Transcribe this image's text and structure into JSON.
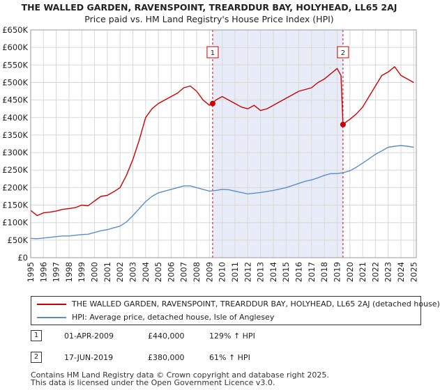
{
  "title": "THE WALLED GARDEN, RAVENSPOINT, TREARDDUR BAY, HOLYHEAD, LL65 2AJ",
  "subtitle": "Price paid vs. HM Land Registry's House Price Index (HPI)",
  "chart_data": {
    "type": "line",
    "xlim": [
      1995,
      2025.2
    ],
    "ylim": [
      0,
      650000
    ],
    "y_ticks": [
      0,
      50000,
      100000,
      150000,
      200000,
      250000,
      300000,
      350000,
      400000,
      450000,
      500000,
      550000,
      600000,
      650000
    ],
    "y_tick_labels": [
      "£0",
      "£50K",
      "£100K",
      "£150K",
      "£200K",
      "£250K",
      "£300K",
      "£350K",
      "£400K",
      "£450K",
      "£500K",
      "£550K",
      "£600K",
      "£650K"
    ],
    "x_ticks": [
      "1995",
      "1996",
      "1997",
      "1998",
      "1999",
      "2000",
      "2001",
      "2002",
      "2003",
      "2004",
      "2005",
      "2006",
      "2007",
      "2008",
      "2009",
      "2010",
      "2011",
      "2012",
      "2013",
      "2014",
      "2015",
      "2016",
      "2017",
      "2018",
      "2019",
      "2020",
      "2021",
      "2022",
      "2023",
      "2024",
      "2025"
    ],
    "grid": true,
    "shaded_region": [
      2009.25,
      2019.46
    ],
    "series": [
      {
        "name": "THE WALLED GARDEN, RAVENSPOINT, TREARDDUR BAY, HOLYHEAD, LL65 2AJ (detached house)",
        "color": "#cc0000",
        "x": [
          1995.0,
          1995.5,
          1996.0,
          1996.5,
          1997.0,
          1997.5,
          1998.0,
          1998.5,
          1999.0,
          1999.5,
          2000.0,
          2000.5,
          2001.0,
          2001.5,
          2002.0,
          2002.5,
          2003.0,
          2003.5,
          2004.0,
          2004.5,
          2005.0,
          2005.5,
          2006.0,
          2006.5,
          2007.0,
          2007.5,
          2008.0,
          2008.5,
          2009.0,
          2009.25,
          2009.5,
          2010.0,
          2010.5,
          2011.0,
          2011.5,
          2012.0,
          2012.5,
          2013.0,
          2013.5,
          2014.0,
          2014.5,
          2015.0,
          2015.5,
          2016.0,
          2016.5,
          2017.0,
          2017.5,
          2018.0,
          2018.5,
          2019.0,
          2019.3,
          2019.46,
          2019.8,
          2020.0,
          2020.5,
          2021.0,
          2021.5,
          2022.0,
          2022.5,
          2023.0,
          2023.5,
          2024.0,
          2024.5,
          2025.0
        ],
        "values": [
          135000,
          120000,
          128000,
          130000,
          133000,
          138000,
          140000,
          143000,
          150000,
          148000,
          162000,
          175000,
          178000,
          188000,
          200000,
          235000,
          280000,
          335000,
          400000,
          425000,
          440000,
          450000,
          460000,
          470000,
          485000,
          490000,
          475000,
          450000,
          435000,
          440000,
          450000,
          460000,
          450000,
          440000,
          430000,
          425000,
          435000,
          420000,
          425000,
          435000,
          445000,
          455000,
          465000,
          475000,
          480000,
          485000,
          500000,
          510000,
          525000,
          540000,
          520000,
          380000,
          390000,
          395000,
          410000,
          430000,
          460000,
          490000,
          520000,
          530000,
          545000,
          520000,
          510000,
          500000
        ]
      },
      {
        "name": "HPI: Average price, detached house, Isle of Anglesey",
        "color": "#5b8ec9",
        "x": [
          1995.0,
          1995.5,
          1996.0,
          1996.5,
          1997.0,
          1997.5,
          1998.0,
          1998.5,
          1999.0,
          1999.5,
          2000.0,
          2000.5,
          2001.0,
          2001.5,
          2002.0,
          2002.5,
          2003.0,
          2003.5,
          2004.0,
          2004.5,
          2005.0,
          2005.5,
          2006.0,
          2006.5,
          2007.0,
          2007.5,
          2008.0,
          2008.5,
          2009.0,
          2009.5,
          2010.0,
          2010.5,
          2011.0,
          2011.5,
          2012.0,
          2012.5,
          2013.0,
          2013.5,
          2014.0,
          2014.5,
          2015.0,
          2015.5,
          2016.0,
          2016.5,
          2017.0,
          2017.5,
          2018.0,
          2018.5,
          2019.0,
          2019.5,
          2020.0,
          2020.5,
          2021.0,
          2021.5,
          2022.0,
          2022.5,
          2023.0,
          2023.5,
          2024.0,
          2024.5,
          2025.0
        ],
        "values": [
          55000,
          54000,
          56000,
          58000,
          60000,
          62000,
          62000,
          64000,
          66000,
          67000,
          72000,
          77000,
          80000,
          85000,
          90000,
          102000,
          120000,
          140000,
          160000,
          175000,
          185000,
          190000,
          195000,
          200000,
          205000,
          205000,
          200000,
          195000,
          190000,
          192000,
          195000,
          194000,
          190000,
          186000,
          182000,
          184000,
          186000,
          189000,
          192000,
          196000,
          200000,
          206000,
          212000,
          218000,
          222000,
          228000,
          235000,
          240000,
          240000,
          243000,
          248000,
          258000,
          270000,
          282000,
          295000,
          305000,
          315000,
          318000,
          320000,
          318000,
          315000
        ]
      }
    ],
    "annotations": [
      {
        "label": "1",
        "x": 2009.25,
        "y": 440000
      },
      {
        "label": "2",
        "x": 2019.46,
        "y": 380000
      }
    ]
  },
  "legend": [
    {
      "label": "THE WALLED GARDEN, RAVENSPOINT, TREARDDUR BAY, HOLYHEAD, LL65 2AJ (detached house)",
      "color": "#cc0000"
    },
    {
      "label": "HPI: Average price, detached house, Isle of Anglesey",
      "color": "#5b8ec9"
    }
  ],
  "transactions": [
    {
      "num": "1",
      "date": "01-APR-2009",
      "price": "£440,000",
      "hpi": "129% ↑ HPI"
    },
    {
      "num": "2",
      "date": "17-JUN-2019",
      "price": "£380,000",
      "hpi": "61% ↑ HPI"
    }
  ],
  "footer": {
    "line1": "Contains HM Land Registry data © Crown copyright and database right 2025.",
    "line2": "This data is licensed under the Open Government Licence v3.0."
  }
}
